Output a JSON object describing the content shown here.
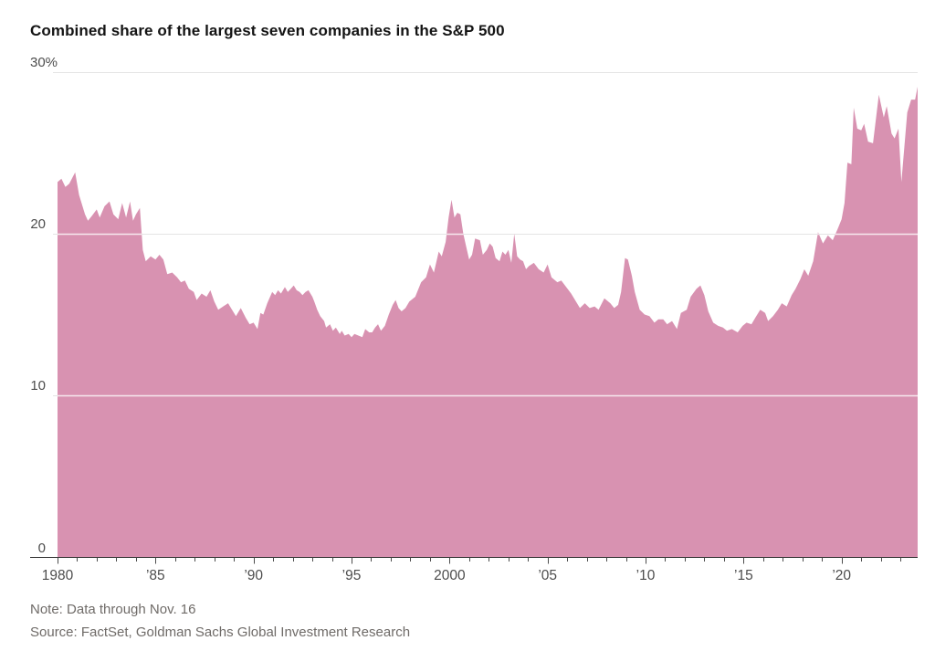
{
  "chart_data": {
    "type": "area",
    "title": "Combined share of the largest seven companies in the S&P 500",
    "note": "Note: Data through Nov. 16",
    "source": "Source: FactSet, Goldman Sachs Global Investment Research",
    "unit": "%",
    "xlim": [
      1980,
      2023.88
    ],
    "ylim": [
      0,
      30
    ],
    "grid": "horizontal-gridlines-on",
    "legend": "none",
    "fill_color": "#d892b1",
    "gridline_color": "#e4e4e4",
    "gridline_over_fill_color": "rgba(255,255,255,0.8)",
    "axis_line_color": "#2d2d2d",
    "tick_color": "#4c4c4c",
    "tick_label_color": "#4d4d4d",
    "x_ticks": [
      {
        "year": 1980,
        "label": "1980"
      },
      {
        "year": 1985,
        "label": "’85"
      },
      {
        "year": 1990,
        "label": "’90"
      },
      {
        "year": 1995,
        "label": "’95"
      },
      {
        "year": 2000,
        "label": "2000"
      },
      {
        "year": 2005,
        "label": "’05"
      },
      {
        "year": 2010,
        "label": "’10"
      },
      {
        "year": 2015,
        "label": "’15"
      },
      {
        "year": 2020,
        "label": "’20"
      }
    ],
    "x_minor_tick_interval": 1,
    "x_minor_tick_range": [
      1980,
      2023
    ],
    "y_ticks": [
      {
        "value": 30,
        "label": "30%"
      },
      {
        "value": 20,
        "label": "20"
      },
      {
        "value": 10,
        "label": "10"
      },
      {
        "value": 0,
        "label": "0"
      }
    ],
    "series": [
      {
        "name": "Combined share of largest seven S&P 500 companies (%)",
        "color": "#d892b1",
        "points": [
          [
            1980.0,
            23.2
          ],
          [
            1980.2,
            23.4
          ],
          [
            1980.4,
            22.9
          ],
          [
            1980.6,
            23.1
          ],
          [
            1980.9,
            23.8
          ],
          [
            1981.1,
            22.4
          ],
          [
            1981.4,
            21.2
          ],
          [
            1981.55,
            20.8
          ],
          [
            1981.75,
            21.1
          ],
          [
            1982.0,
            21.5
          ],
          [
            1982.15,
            21.0
          ],
          [
            1982.4,
            21.7
          ],
          [
            1982.65,
            22.0
          ],
          [
            1982.85,
            21.2
          ],
          [
            1983.1,
            20.9
          ],
          [
            1983.3,
            21.9
          ],
          [
            1983.5,
            21.0
          ],
          [
            1983.7,
            22.0
          ],
          [
            1983.85,
            20.8
          ],
          [
            1984.0,
            21.2
          ],
          [
            1984.2,
            21.6
          ],
          [
            1984.35,
            19.0
          ],
          [
            1984.5,
            18.3
          ],
          [
            1984.75,
            18.6
          ],
          [
            1985.0,
            18.4
          ],
          [
            1985.2,
            18.7
          ],
          [
            1985.4,
            18.4
          ],
          [
            1985.6,
            17.5
          ],
          [
            1985.85,
            17.6
          ],
          [
            1986.1,
            17.3
          ],
          [
            1986.3,
            17.0
          ],
          [
            1986.5,
            17.1
          ],
          [
            1986.7,
            16.6
          ],
          [
            1986.95,
            16.4
          ],
          [
            1987.1,
            15.9
          ],
          [
            1987.35,
            16.3
          ],
          [
            1987.6,
            16.1
          ],
          [
            1987.8,
            16.5
          ],
          [
            1988.0,
            15.8
          ],
          [
            1988.2,
            15.3
          ],
          [
            1988.45,
            15.5
          ],
          [
            1988.7,
            15.7
          ],
          [
            1988.9,
            15.3
          ],
          [
            1989.1,
            14.9
          ],
          [
            1989.35,
            15.4
          ],
          [
            1989.6,
            14.8
          ],
          [
            1989.8,
            14.4
          ],
          [
            1990.0,
            14.5
          ],
          [
            1990.2,
            14.1
          ],
          [
            1990.35,
            15.1
          ],
          [
            1990.5,
            15.0
          ],
          [
            1990.7,
            15.7
          ],
          [
            1990.95,
            16.4
          ],
          [
            1991.1,
            16.2
          ],
          [
            1991.25,
            16.5
          ],
          [
            1991.4,
            16.3
          ],
          [
            1991.6,
            16.7
          ],
          [
            1991.75,
            16.4
          ],
          [
            1991.9,
            16.6
          ],
          [
            1992.05,
            16.8
          ],
          [
            1992.2,
            16.5
          ],
          [
            1992.35,
            16.4
          ],
          [
            1992.5,
            16.2
          ],
          [
            1992.65,
            16.4
          ],
          [
            1992.8,
            16.5
          ],
          [
            1993.0,
            16.1
          ],
          [
            1993.1,
            15.8
          ],
          [
            1993.25,
            15.3
          ],
          [
            1993.4,
            14.9
          ],
          [
            1993.6,
            14.6
          ],
          [
            1993.7,
            14.2
          ],
          [
            1993.9,
            14.4
          ],
          [
            1994.05,
            14.0
          ],
          [
            1994.2,
            14.2
          ],
          [
            1994.4,
            13.8
          ],
          [
            1994.5,
            14.0
          ],
          [
            1994.65,
            13.7
          ],
          [
            1994.85,
            13.8
          ],
          [
            1995.0,
            13.6
          ],
          [
            1995.15,
            13.8
          ],
          [
            1995.35,
            13.7
          ],
          [
            1995.55,
            13.6
          ],
          [
            1995.7,
            14.1
          ],
          [
            1995.9,
            13.9
          ],
          [
            1996.05,
            13.9
          ],
          [
            1996.2,
            14.2
          ],
          [
            1996.35,
            14.4
          ],
          [
            1996.5,
            14.0
          ],
          [
            1996.7,
            14.3
          ],
          [
            1996.9,
            15.0
          ],
          [
            1997.1,
            15.6
          ],
          [
            1997.25,
            15.9
          ],
          [
            1997.4,
            15.4
          ],
          [
            1997.55,
            15.2
          ],
          [
            1997.75,
            15.4
          ],
          [
            1997.95,
            15.8
          ],
          [
            1998.25,
            16.1
          ],
          [
            1998.55,
            17.0
          ],
          [
            1998.8,
            17.3
          ],
          [
            1999.0,
            18.1
          ],
          [
            1999.2,
            17.6
          ],
          [
            1999.45,
            18.9
          ],
          [
            1999.6,
            18.6
          ],
          [
            1999.8,
            19.5
          ],
          [
            1999.95,
            21.0
          ],
          [
            2000.1,
            22.1
          ],
          [
            2000.25,
            21.0
          ],
          [
            2000.4,
            21.3
          ],
          [
            2000.55,
            21.2
          ],
          [
            2000.7,
            20.0
          ],
          [
            2000.85,
            19.2
          ],
          [
            2001.0,
            18.4
          ],
          [
            2001.15,
            18.7
          ],
          [
            2001.3,
            19.7
          ],
          [
            2001.55,
            19.6
          ],
          [
            2001.7,
            18.7
          ],
          [
            2001.9,
            19.0
          ],
          [
            2002.05,
            19.4
          ],
          [
            2002.2,
            19.2
          ],
          [
            2002.35,
            18.5
          ],
          [
            2002.55,
            18.3
          ],
          [
            2002.7,
            18.9
          ],
          [
            2002.85,
            18.7
          ],
          [
            2003.0,
            19.0
          ],
          [
            2003.15,
            18.2
          ],
          [
            2003.3,
            20.0
          ],
          [
            2003.45,
            18.6
          ],
          [
            2003.6,
            18.4
          ],
          [
            2003.75,
            18.3
          ],
          [
            2003.9,
            17.8
          ],
          [
            2004.05,
            18.0
          ],
          [
            2004.3,
            18.2
          ],
          [
            2004.55,
            17.8
          ],
          [
            2004.8,
            17.6
          ],
          [
            2005.0,
            18.1
          ],
          [
            2005.2,
            17.3
          ],
          [
            2005.5,
            17.0
          ],
          [
            2005.7,
            17.1
          ],
          [
            2005.95,
            16.7
          ],
          [
            2006.2,
            16.3
          ],
          [
            2006.45,
            15.8
          ],
          [
            2006.65,
            15.4
          ],
          [
            2006.9,
            15.7
          ],
          [
            2007.15,
            15.4
          ],
          [
            2007.4,
            15.5
          ],
          [
            2007.6,
            15.3
          ],
          [
            2007.9,
            16.0
          ],
          [
            2008.2,
            15.7
          ],
          [
            2008.4,
            15.4
          ],
          [
            2008.6,
            15.6
          ],
          [
            2008.75,
            16.4
          ],
          [
            2008.95,
            18.5
          ],
          [
            2009.1,
            18.4
          ],
          [
            2009.3,
            17.4
          ],
          [
            2009.45,
            16.4
          ],
          [
            2009.7,
            15.3
          ],
          [
            2009.95,
            15.0
          ],
          [
            2010.2,
            14.9
          ],
          [
            2010.45,
            14.5
          ],
          [
            2010.65,
            14.7
          ],
          [
            2010.9,
            14.7
          ],
          [
            2011.1,
            14.4
          ],
          [
            2011.35,
            14.6
          ],
          [
            2011.6,
            14.1
          ],
          [
            2011.8,
            15.1
          ],
          [
            2012.1,
            15.3
          ],
          [
            2012.3,
            16.1
          ],
          [
            2012.6,
            16.6
          ],
          [
            2012.8,
            16.8
          ],
          [
            2013.0,
            16.2
          ],
          [
            2013.2,
            15.2
          ],
          [
            2013.45,
            14.5
          ],
          [
            2013.7,
            14.3
          ],
          [
            2013.95,
            14.2
          ],
          [
            2014.15,
            14.0
          ],
          [
            2014.4,
            14.1
          ],
          [
            2014.7,
            13.9
          ],
          [
            2014.95,
            14.3
          ],
          [
            2015.15,
            14.5
          ],
          [
            2015.4,
            14.4
          ],
          [
            2015.6,
            14.8
          ],
          [
            2015.85,
            15.3
          ],
          [
            2016.1,
            15.1
          ],
          [
            2016.25,
            14.6
          ],
          [
            2016.5,
            14.9
          ],
          [
            2016.75,
            15.3
          ],
          [
            2016.95,
            15.7
          ],
          [
            2017.2,
            15.5
          ],
          [
            2017.45,
            16.2
          ],
          [
            2017.65,
            16.6
          ],
          [
            2017.9,
            17.2
          ],
          [
            2018.1,
            17.8
          ],
          [
            2018.3,
            17.4
          ],
          [
            2018.55,
            18.3
          ],
          [
            2018.8,
            20.1
          ],
          [
            2019.05,
            19.4
          ],
          [
            2019.3,
            19.9
          ],
          [
            2019.55,
            19.6
          ],
          [
            2019.8,
            20.3
          ],
          [
            2020.0,
            20.9
          ],
          [
            2020.15,
            21.9
          ],
          [
            2020.3,
            24.4
          ],
          [
            2020.5,
            24.3
          ],
          [
            2020.62,
            27.8
          ],
          [
            2020.8,
            26.5
          ],
          [
            2021.0,
            26.4
          ],
          [
            2021.15,
            26.8
          ],
          [
            2021.35,
            25.7
          ],
          [
            2021.6,
            25.6
          ],
          [
            2021.9,
            28.6
          ],
          [
            2022.15,
            27.2
          ],
          [
            2022.3,
            27.9
          ],
          [
            2022.55,
            26.2
          ],
          [
            2022.7,
            25.9
          ],
          [
            2022.9,
            26.5
          ],
          [
            2023.05,
            23.2
          ],
          [
            2023.35,
            27.5
          ],
          [
            2023.55,
            28.3
          ],
          [
            2023.75,
            28.3
          ],
          [
            2023.88,
            29.1
          ]
        ]
      }
    ]
  }
}
